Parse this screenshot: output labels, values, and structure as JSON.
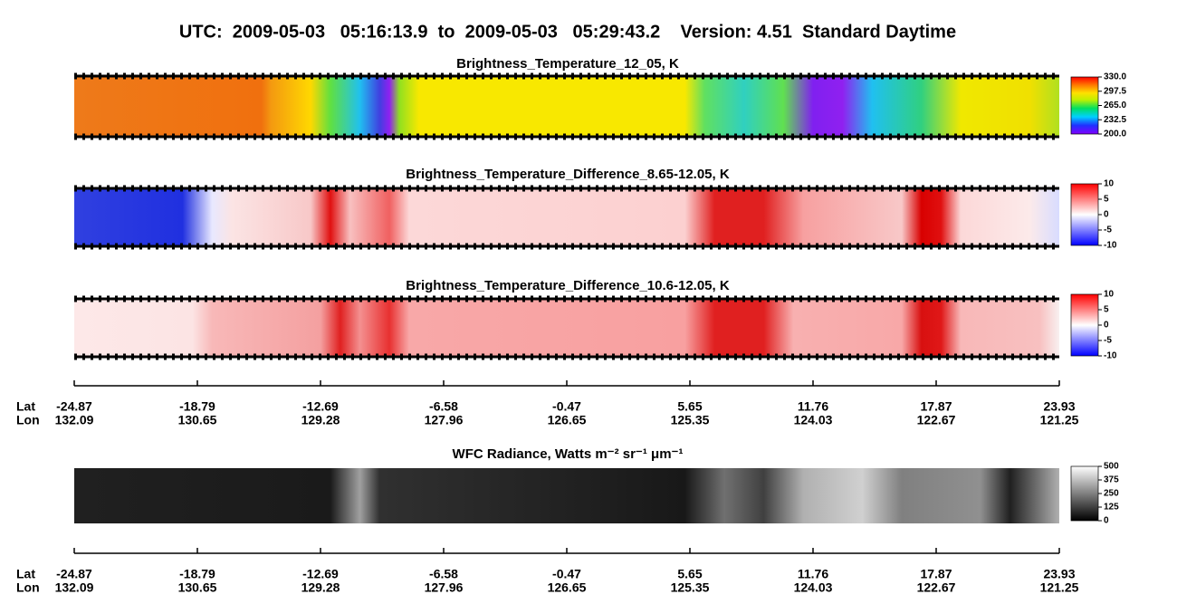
{
  "header": {
    "title": "UTC:  2009-05-03   05:16:13.9  to  2009-05-03   05:29:43.2    Version: 4.51  Standard Daytime"
  },
  "panels": [
    {
      "title": "Brightness_Temperature_12_05, K",
      "clim": [
        200,
        330
      ],
      "ticks": [
        {
          "value": 330,
          "label": "330.0"
        },
        {
          "value": 297.5,
          "label": "297.5"
        },
        {
          "value": 265,
          "label": "265.0"
        },
        {
          "value": 232.5,
          "label": "232.5"
        },
        {
          "value": 200,
          "label": "200.0"
        }
      ]
    },
    {
      "title": "Brightness_Temperature_Difference_8.65-12.05, K",
      "clim": [
        -10,
        10
      ],
      "ticks": [
        10,
        5,
        0,
        -5,
        -10
      ]
    },
    {
      "title": "Brightness_Temperature_Difference_10.6-12.05, K",
      "clim": [
        -10,
        10
      ],
      "ticks": [
        10,
        5,
        0,
        -5,
        -10
      ]
    },
    {
      "title": "WFC Radiance, Watts m⁻² sr⁻¹ μm⁻¹",
      "clim": [
        0,
        500
      ],
      "ticks": [
        500,
        375,
        250,
        125,
        0
      ]
    }
  ],
  "geo_axis": {
    "lat_label": "Lat",
    "lon_label": "Lon",
    "lat": [
      "-24.87",
      "-18.79",
      "-12.69",
      "-6.58",
      "-0.47",
      "5.65",
      "11.76",
      "17.87",
      "23.93"
    ],
    "lon": [
      "132.09",
      "130.65",
      "129.28",
      "127.96",
      "126.65",
      "125.35",
      "124.03",
      "122.67",
      "121.25"
    ]
  }
}
